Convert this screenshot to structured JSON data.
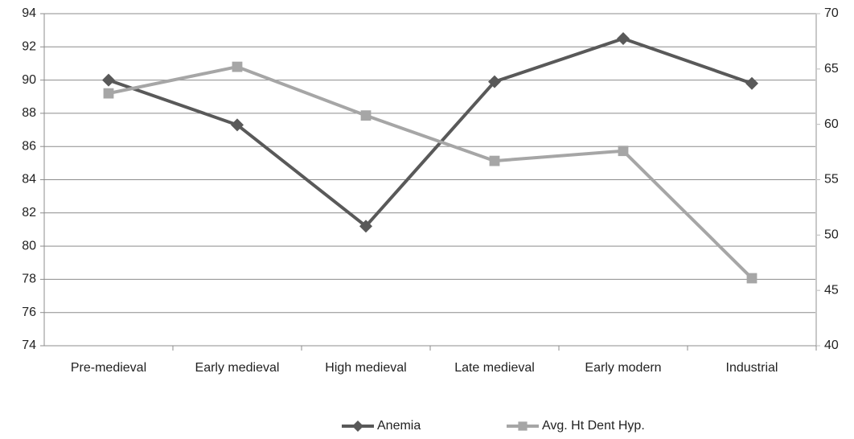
{
  "chart_data": {
    "type": "line",
    "categories": [
      "Pre-medieval",
      "Early medieval",
      "High medieval",
      "Late medieval",
      "Early modern",
      "Industrial"
    ],
    "series": [
      {
        "name": "Anemia",
        "color": "#595959",
        "marker": "diamond",
        "values": [
          90.0,
          87.3,
          81.2,
          89.9,
          92.5,
          89.8
        ]
      },
      {
        "name": "Avg. Ht Dent Hyp.",
        "color": "#a6a6a6",
        "marker": "square",
        "axis": "y2",
        "values": [
          62.8,
          65.2,
          60.8,
          56.7,
          57.6,
          46.1
        ]
      }
    ],
    "ylim": [
      74,
      94
    ],
    "yticks": [
      74,
      76,
      78,
      80,
      82,
      84,
      86,
      88,
      90,
      92,
      94
    ],
    "y2lim": [
      40,
      70
    ],
    "y2ticks": [
      40,
      45,
      50,
      55,
      60,
      65,
      70
    ],
    "grid": true,
    "legend": "bottom"
  }
}
